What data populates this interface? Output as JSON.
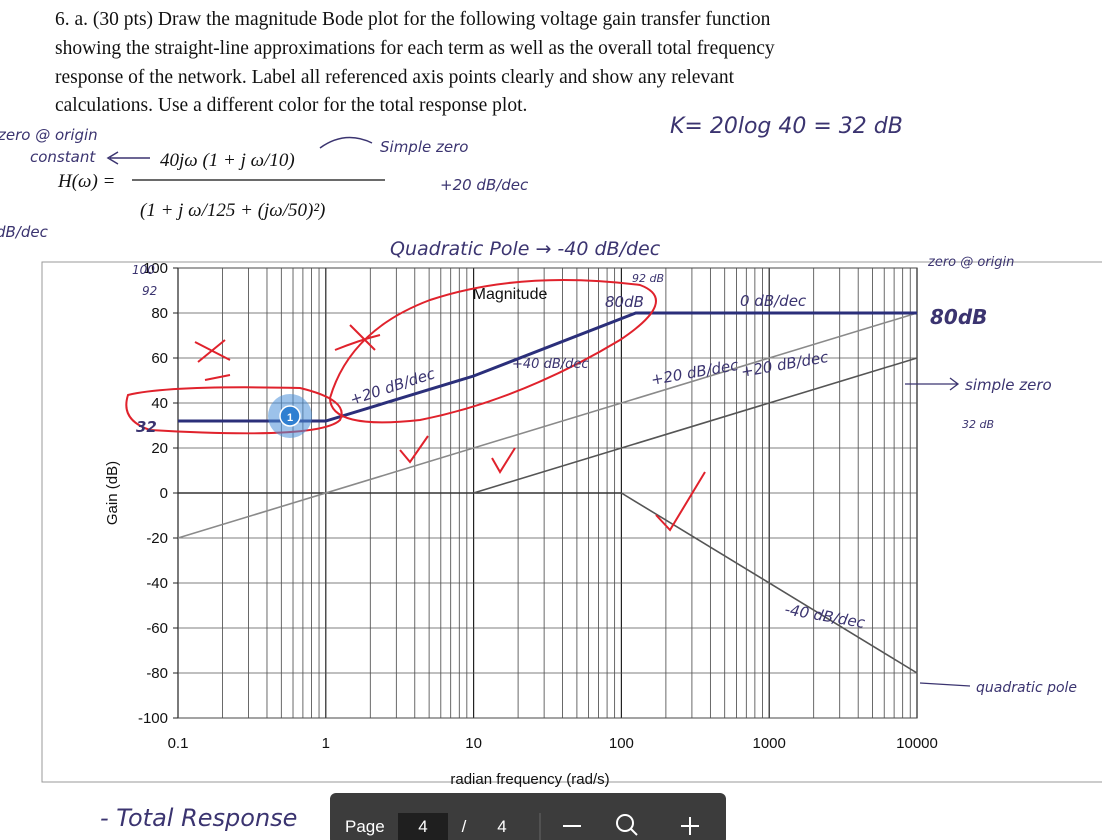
{
  "question": {
    "lines": [
      "6. a. (30 pts) Draw the magnitude Bode plot for the following voltage gain transfer function",
      "showing the straight-line approximations for each term as well as the overall total frequency",
      "response of the network.  Label all referenced axis points clearly and show any relevant",
      "calculations.  Use a different color for the total response plot."
    ]
  },
  "formula": {
    "lhs": "H(ω) =",
    "numerator": "40jω (1 + j ω/10)",
    "denominator": "(1 + j ω/125 + (jω/50)²)"
  },
  "annotations": [
    "zero @ origin",
    "constant",
    "dB/dec",
    "Simple zero",
    "+20 dB/dec",
    "K= 20log 40  = 32 dB",
    "Quadratic Pole → -40 dB/dec",
    "92 dB",
    "80dB",
    "0 dB/dec",
    "zero @ origin",
    "80dB",
    "simple zero",
    "32 dB",
    "+20 dB/dec",
    "+40 dB/dec",
    "+20 dB/dec",
    "+20 dB/dec",
    "-40 dB/dec",
    "quadratic pole",
    "100",
    "92",
    "32",
    "- Total Response"
  ],
  "chart_data": {
    "type": "line",
    "title": "Magnitude",
    "x_label": "radian frequency (rad/s)",
    "y_label": "Gain (dB)",
    "x_log": true,
    "grid": true,
    "xlim": [
      0.1,
      10000
    ],
    "xticks": [
      0.1,
      1,
      10,
      100,
      1000,
      10000
    ],
    "ylim": [
      -100,
      100
    ],
    "yticks": [
      100,
      80,
      60,
      40,
      20,
      0,
      -20,
      -40,
      -60,
      -80,
      -100
    ],
    "series": [
      {
        "color": "#333333",
        "x": [
          0.1,
          100
        ],
        "values": [
          0,
          0
        ]
      },
      {
        "color": "#8a8a8a",
        "x": [
          0.1,
          10000
        ],
        "values": [
          -20,
          80
        ]
      },
      {
        "color": "#555555",
        "x": [
          10,
          10000
        ],
        "values": [
          0,
          60
        ]
      },
      {
        "color": "#555555",
        "x": [
          100,
          10000
        ],
        "values": [
          0,
          -80
        ]
      },
      {
        "color": "#2b2f7a",
        "x": [
          0.1,
          1,
          10,
          125,
          10000
        ],
        "values": [
          32,
          32,
          52,
          80,
          80
        ]
      }
    ]
  },
  "marker": {
    "label": "1"
  },
  "toolbar": {
    "label": "Page",
    "current": 4,
    "separator": "/",
    "total": 4
  }
}
